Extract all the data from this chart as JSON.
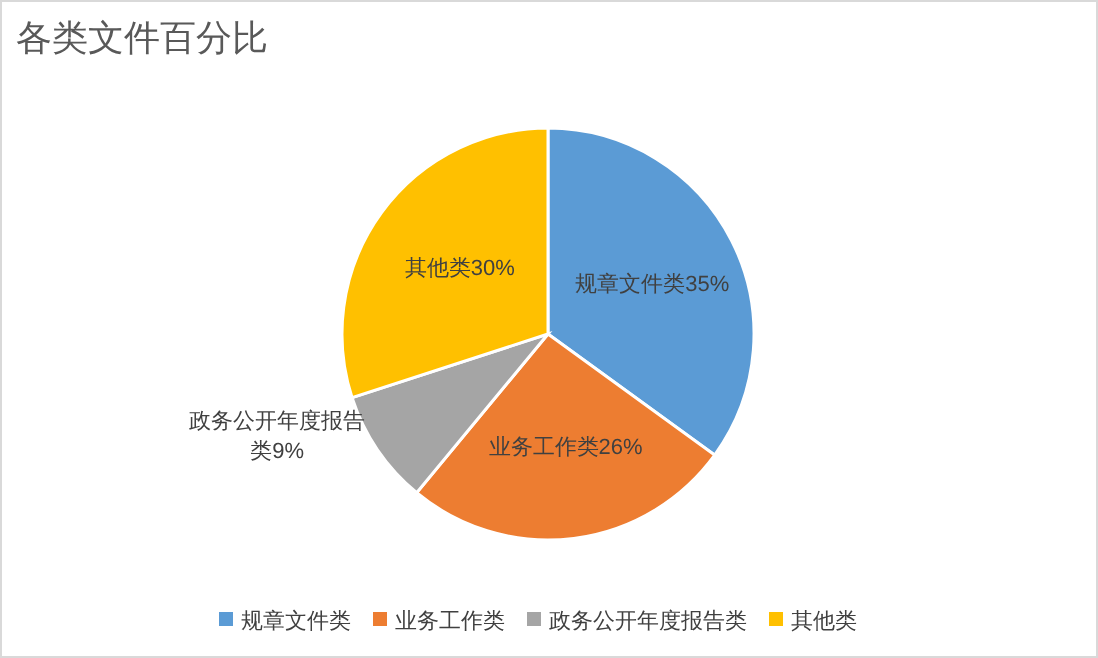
{
  "chart_data": {
    "type": "pie",
    "title": "各类文件百分比",
    "categories": [
      "规章文件类",
      "业务工作类",
      "政务公开年度报告类",
      "其他类"
    ],
    "values": [
      35,
      26,
      9,
      30
    ],
    "colors": [
      "#5b9bd5",
      "#ed7d31",
      "#a5a5a5",
      "#ffc000"
    ],
    "value_labels": [
      "35%",
      "26%",
      "9%",
      "30%"
    ],
    "legend": "bottom"
  }
}
